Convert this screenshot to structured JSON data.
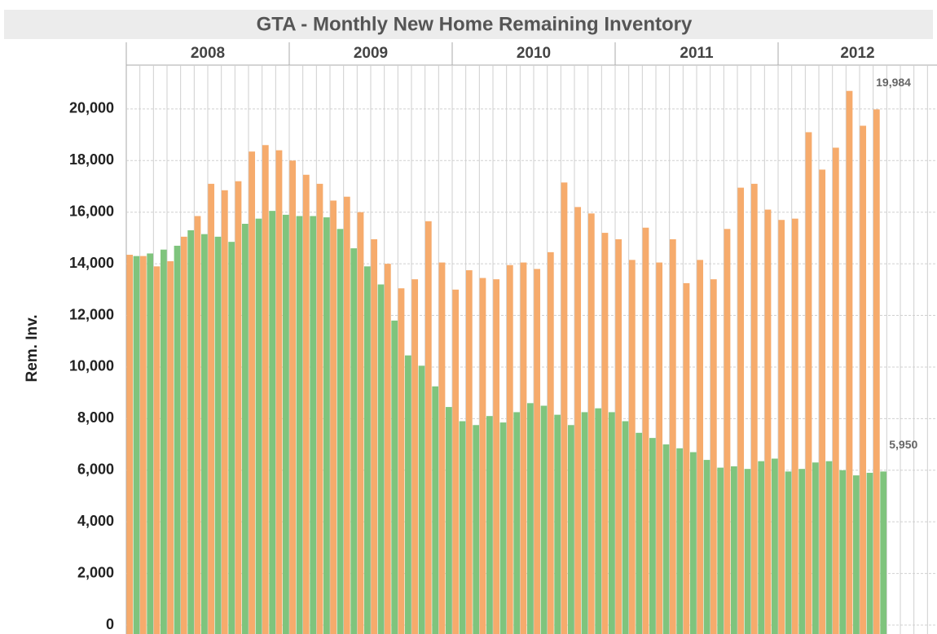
{
  "chart_data": {
    "type": "bar",
    "title": "GTA - Monthly New Home Remaining Inventory",
    "y_label": "Rem. Inv.",
    "years": [
      "2008",
      "2009",
      "2010",
      "2011",
      "2012"
    ],
    "categories": [
      null,
      null,
      null,
      null,
      null,
      null,
      null,
      null,
      null,
      null,
      null,
      null,
      null,
      null,
      null,
      null,
      null,
      null,
      null,
      null,
      null,
      null,
      null,
      null,
      null,
      null,
      null,
      null,
      null,
      null,
      null,
      null,
      null,
      null,
      null,
      null,
      null,
      null,
      null,
      null,
      null,
      null,
      null,
      null,
      null,
      null,
      null,
      null,
      null,
      null,
      null,
      null,
      null,
      null,
      null,
      null
    ],
    "series": [
      {
        "color": "#f6ab6c",
        "values": [
          14350,
          14300,
          13900,
          14100,
          15050,
          15850,
          17100,
          16850,
          17200,
          18350,
          18600,
          18400,
          18000,
          17450,
          17100,
          16450,
          16600,
          16000,
          14950,
          14000,
          13050,
          13400,
          15650,
          14050,
          13000,
          13750,
          13450,
          13400,
          13950,
          14050,
          13800,
          14450,
          17150,
          16200,
          15950,
          15200,
          14950,
          14150,
          15400,
          14050,
          14950,
          13250,
          14150,
          13400,
          15350,
          16950,
          17100,
          16100,
          15700,
          15750,
          19100,
          17650,
          18500,
          20700,
          19350,
          19984
        ],
        "value_labels": [
          null,
          null,
          null,
          null,
          null,
          null,
          null,
          null,
          null,
          null,
          null,
          null,
          null,
          null,
          null,
          null,
          null,
          null,
          null,
          null,
          null,
          null,
          null,
          null,
          null,
          null,
          null,
          null,
          null,
          null,
          null,
          null,
          null,
          null,
          null,
          null,
          null,
          null,
          null,
          null,
          null,
          null,
          null,
          null,
          null,
          null,
          null,
          null,
          null,
          null,
          null,
          null,
          null,
          null,
          null,
          "19,984"
        ]
      },
      {
        "color": "#7fc47d",
        "values": [
          14300,
          14400,
          14550,
          14700,
          15300,
          15150,
          15050,
          14850,
          15550,
          15750,
          16050,
          15900,
          15850,
          15850,
          15800,
          15350,
          14600,
          13900,
          13200,
          11800,
          10450,
          10050,
          9250,
          8450,
          7900,
          7750,
          8100,
          7850,
          8250,
          8600,
          8500,
          8150,
          7750,
          8250,
          8400,
          8250,
          7900,
          7450,
          7250,
          7000,
          6850,
          6700,
          6400,
          6100,
          6150,
          6050,
          6350,
          6450,
          5950,
          6050,
          6300,
          6350,
          6000,
          5800,
          5900,
          5950
        ],
        "value_labels": [
          null,
          null,
          null,
          null,
          null,
          null,
          null,
          null,
          null,
          null,
          null,
          null,
          null,
          null,
          null,
          null,
          null,
          null,
          null,
          null,
          null,
          null,
          null,
          null,
          null,
          null,
          null,
          null,
          null,
          null,
          null,
          null,
          null,
          null,
          null,
          null,
          null,
          null,
          null,
          null,
          null,
          null,
          null,
          null,
          null,
          null,
          null,
          null,
          null,
          null,
          null,
          null,
          null,
          null,
          null,
          "5,950"
        ]
      }
    ],
    "ylim": [
      0,
      21700
    ],
    "yticks": [
      0,
      {
        "value": 2000,
        "label": "2,000"
      },
      {
        "value": 4000,
        "label": "4,000"
      },
      {
        "value": 6000,
        "label": "6,000"
      },
      {
        "value": 8000,
        "label": "8,000"
      },
      {
        "value": 10000,
        "label": "10,000"
      },
      {
        "value": 12000,
        "label": "12,000"
      },
      {
        "value": 14000,
        "label": "14,000"
      },
      {
        "value": 16000,
        "label": "16,000"
      },
      {
        "value": 18000,
        "label": "18,000"
      },
      {
        "value": 20000,
        "label": "20,000"
      }
    ],
    "grid": true
  }
}
